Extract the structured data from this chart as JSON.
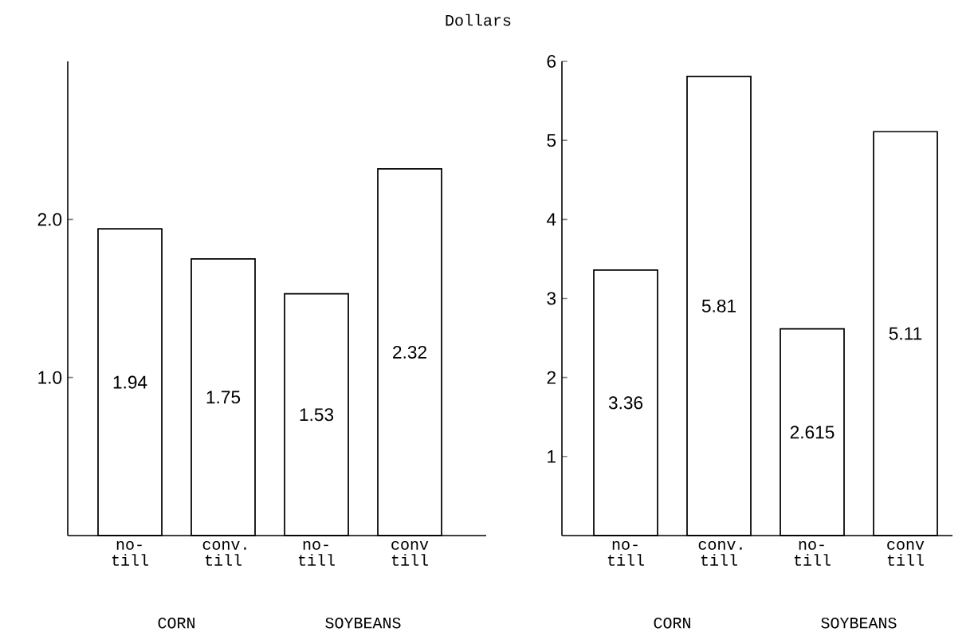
{
  "chart_data": [
    {
      "type": "bar",
      "title": "Dollars",
      "categories": [
        "no-till",
        "conv. till",
        "no-till",
        "conv till"
      ],
      "values": [
        1.94,
        1.75,
        1.53,
        2.32
      ],
      "color": "#ffffff",
      "data_labels": true,
      "ylim": [
        0,
        3
      ],
      "yticks": [
        {
          "value": 1,
          "label": "1.0"
        },
        {
          "value": 2,
          "label": "2.0"
        }
      ],
      "annotations": [
        "CORN",
        "SOYBEANS"
      ]
    },
    {
      "type": "bar",
      "categories": [
        "no-till",
        "conv. till",
        "no-till",
        "conv till"
      ],
      "values": [
        3.36,
        5.81,
        2.615,
        5.11
      ],
      "color": "#ffffff",
      "data_labels": true,
      "ylim": [
        0,
        6
      ],
      "yticks": [
        1,
        2,
        3,
        4,
        5,
        6
      ],
      "annotations": [
        "CORN",
        "SOYBEANS"
      ]
    }
  ]
}
